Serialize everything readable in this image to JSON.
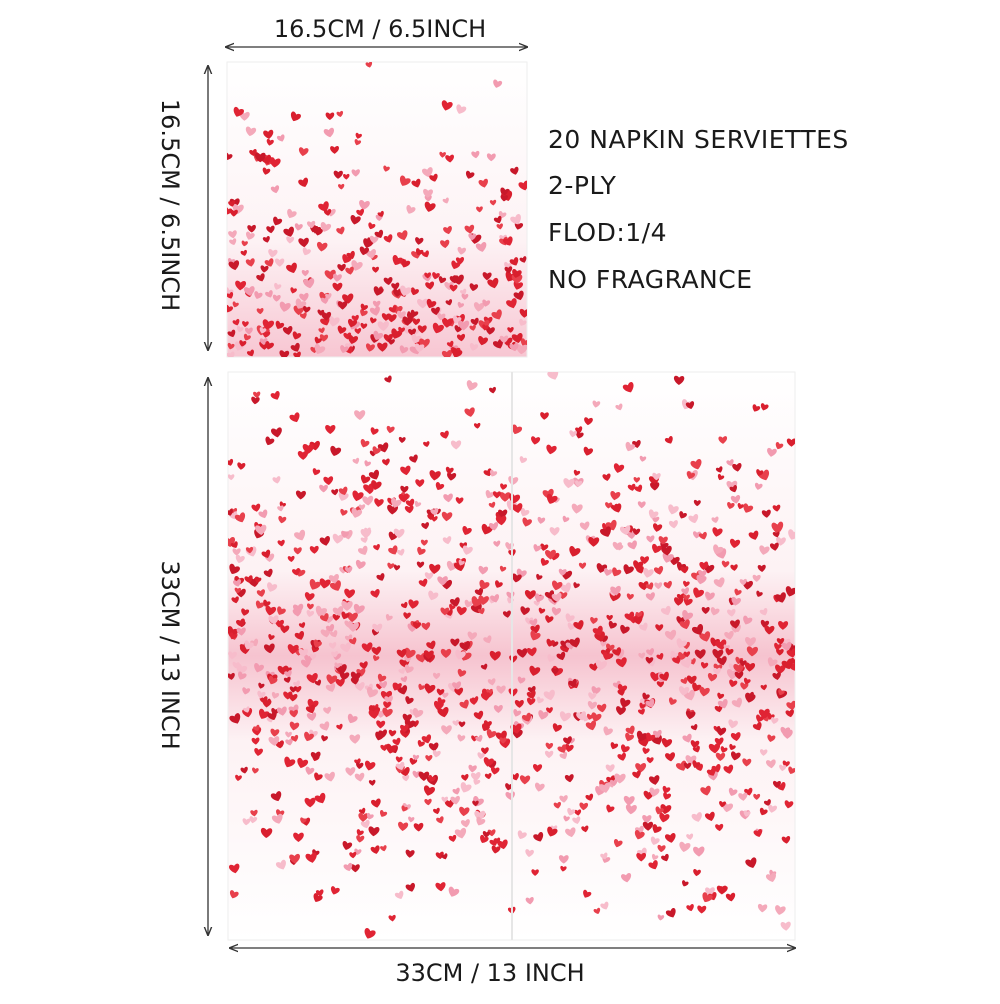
{
  "dimensions": {
    "small_width": "16.5CM / 6.5INCH",
    "small_height": "16.5CM / 6.5INCH",
    "large_height": "33CM / 13 INCH",
    "large_width": "33CM / 13 INCH"
  },
  "features": [
    "20 NAPKIN SERVIETTES",
    "2-PLY",
    "FLOD:1/4",
    "NO FRAGRANCE"
  ]
}
